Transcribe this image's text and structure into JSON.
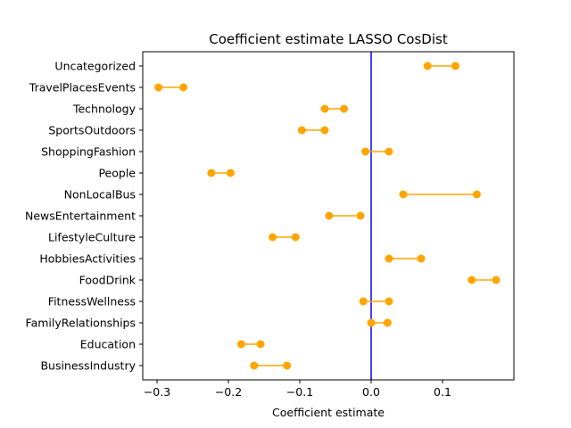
{
  "chart_data": {
    "type": "dumbbell",
    "title": "Coefficient estimate LASSO  CosDist",
    "xlabel": "Coefficient estimate",
    "ylabel": "",
    "xlim": [
      -0.32,
      0.2
    ],
    "x_ticks": [
      -0.3,
      -0.2,
      -0.1,
      0.0,
      0.1
    ],
    "x_tick_labels": [
      "−0.3",
      "−0.2",
      "−0.1",
      "0.0",
      "0.1"
    ],
    "reference_line": {
      "x": 0.0,
      "color": "#0000ff"
    },
    "series_color": "#ffa500",
    "grid": false,
    "categories": [
      "Uncategorized",
      "TravelPlacesEvents",
      "Technology",
      "SportsOutdoors",
      "ShoppingFashion",
      "People",
      "NonLocalBus",
      "NewsEntertainment",
      "LifestyleCulture",
      "HobbiesActivities",
      "FoodDrink",
      "FitnessWellness",
      "FamilyRelationships",
      "Education",
      "BusinessIndustry"
    ],
    "intervals": [
      [
        0.079,
        0.118
      ],
      [
        -0.298,
        -0.263
      ],
      [
        -0.065,
        -0.038
      ],
      [
        -0.097,
        -0.065
      ],
      [
        -0.008,
        0.025
      ],
      [
        -0.224,
        -0.197
      ],
      [
        0.045,
        0.148
      ],
      [
        -0.059,
        -0.015
      ],
      [
        -0.138,
        -0.106
      ],
      [
        0.025,
        0.07
      ],
      [
        0.141,
        0.175
      ],
      [
        -0.011,
        0.025
      ],
      [
        0.0,
        0.023
      ],
      [
        -0.182,
        -0.155
      ],
      [
        -0.164,
        -0.118
      ]
    ]
  }
}
